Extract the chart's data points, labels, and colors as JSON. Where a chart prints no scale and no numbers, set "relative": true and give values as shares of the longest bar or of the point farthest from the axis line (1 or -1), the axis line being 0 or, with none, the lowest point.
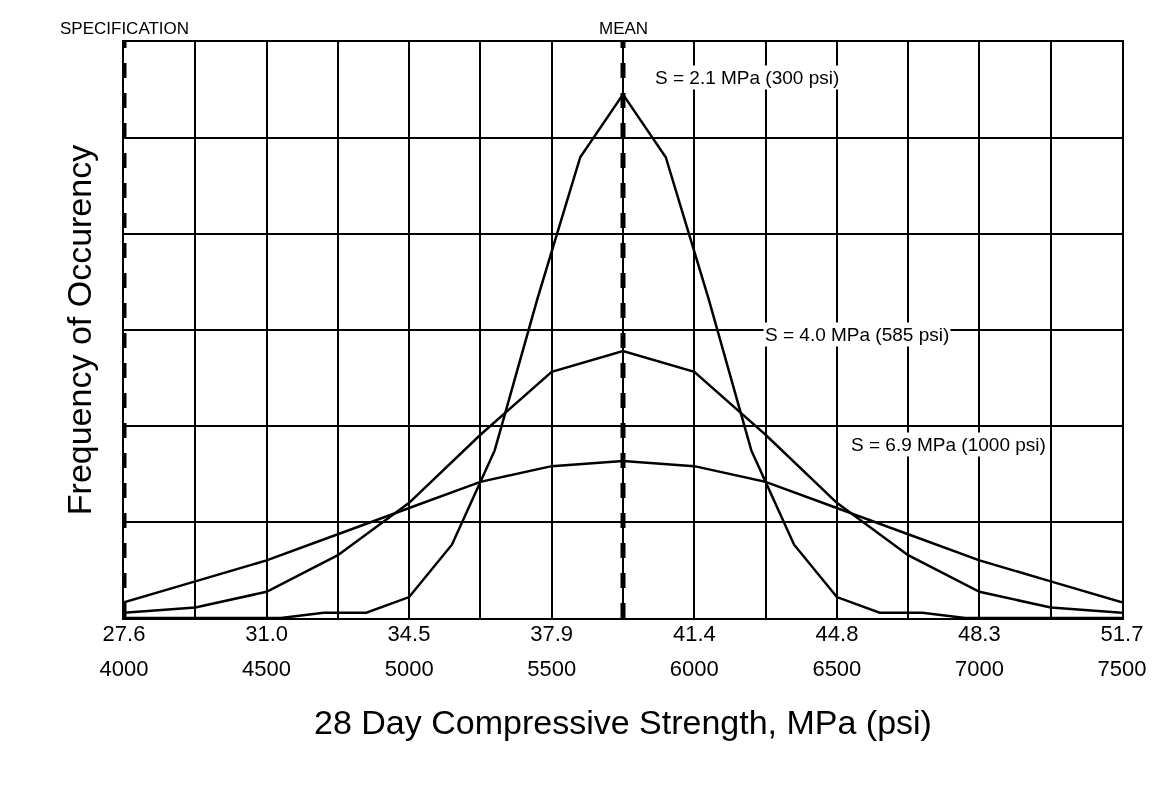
{
  "chart_data": {
    "type": "line",
    "relative": true,
    "xlabel": "28 Day Compressive Strength, MPa (psi)",
    "ylabel": "Frequency of Occurency",
    "xlim": [
      4000,
      7500
    ],
    "xticks": [
      4000,
      {
        "value": 4250,
        "label": null
      },
      4500,
      {
        "value": 4750,
        "label": null
      },
      5000,
      {
        "value": 5250,
        "label": null
      },
      5500,
      {
        "value": 5750,
        "label": null
      },
      6000,
      {
        "value": 6250,
        "label": null
      },
      6500,
      {
        "value": 6750,
        "label": null
      },
      7000,
      {
        "value": 7250,
        "label": null
      },
      7500
    ],
    "x2lim": [
      27.58,
      51.71
    ],
    "x2ticks": [
      {
        "value": 27.58,
        "label": "27.6"
      },
      {
        "value": 31.03,
        "label": "31.0"
      },
      {
        "value": 34.47,
        "label": "34.5"
      },
      {
        "value": 37.92,
        "label": "37.9"
      },
      {
        "value": 41.37,
        "label": "41.4"
      },
      {
        "value": 44.82,
        "label": "44.8"
      },
      {
        "value": 48.26,
        "label": "48.3"
      },
      {
        "value": 51.71,
        "label": "51.7"
      }
    ],
    "grid": true,
    "marker": "none",
    "line_style": "solid",
    "series": [
      {
        "color": "#000000",
        "x": [
          4000,
          4550,
          4700,
          4850,
          5000,
          5150,
          5300,
          5450,
          5600,
          5750,
          5900,
          6050,
          6200,
          6350,
          6500,
          6650,
          6800,
          6950,
          7500
        ],
        "values": [
          0,
          0,
          0.01,
          0.01,
          0.04,
          0.14,
          0.32,
          0.61,
          0.88,
          1,
          0.88,
          0.61,
          0.32,
          0.14,
          0.04,
          0.01,
          0.01,
          0,
          0
        ]
      },
      {
        "color": "#000000",
        "x": [
          4000,
          4250,
          4500,
          4750,
          5000,
          5250,
          5500,
          5750,
          6000,
          6250,
          6500,
          6750,
          7000,
          7250,
          7500
        ],
        "values": [
          0.01,
          0.02,
          0.05,
          0.12,
          0.22,
          0.35,
          0.47,
          0.51,
          0.47,
          0.35,
          0.22,
          0.12,
          0.05,
          0.02,
          0.01
        ]
      },
      {
        "color": "#000000",
        "x": [
          4000,
          4250,
          4500,
          4750,
          5000,
          5250,
          5500,
          5750,
          6000,
          6250,
          6500,
          6750,
          7000,
          7250,
          7500
        ],
        "values": [
          0.03,
          0.07,
          0.11,
          0.16,
          0.21,
          0.26,
          0.29,
          0.3,
          0.29,
          0.26,
          0.21,
          0.16,
          0.11,
          0.07,
          0.03
        ]
      }
    ],
    "ref_lines": [
      {
        "axis": "x",
        "value": 4000,
        "label": "SPECIFICATION",
        "color": "#000000",
        "line_style": "dashed"
      },
      {
        "axis": "x",
        "value": 5750,
        "label": "MEAN",
        "color": "#000000",
        "line_style": "dashed"
      }
    ],
    "annotations": [
      "S = 2.1 MPa (300 psi)",
      "S = 4.0 MPa (585 psi)",
      "S = 6.9 MPa (1000 psi)"
    ]
  }
}
